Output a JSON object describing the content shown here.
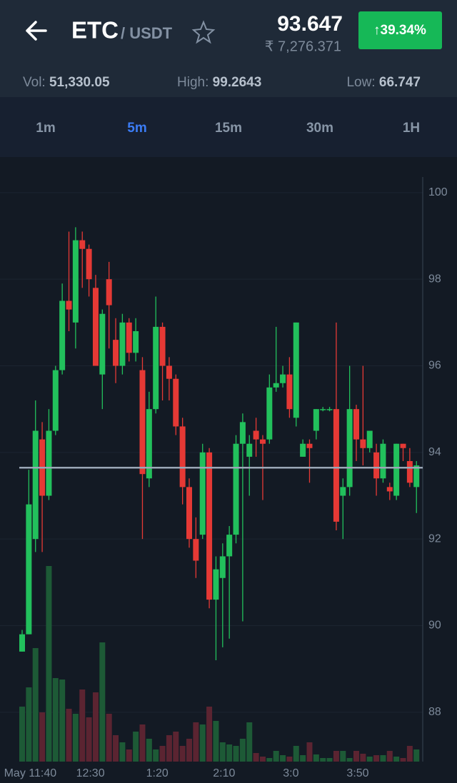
{
  "header": {
    "pair_base": "ETC",
    "pair_quote": "/ USDT",
    "price": "93.647",
    "price_inr": "₹ 7,276.371",
    "change": "↑39.34%"
  },
  "stats": {
    "vol_label": "Vol:",
    "vol": "51,330.05",
    "high_label": "High:",
    "high": "99.2643",
    "low_label": "Low:",
    "low": "66.747"
  },
  "tabs": [
    {
      "label": "1m"
    },
    {
      "label": "5m",
      "active": true
    },
    {
      "label": "15m"
    },
    {
      "label": "30m"
    },
    {
      "label": "1H"
    }
  ],
  "chart_data": {
    "type": "candlestick",
    "categories": [
      null,
      "May 11:40",
      null,
      null,
      null,
      null,
      null,
      null,
      null,
      null,
      "12:30",
      null,
      null,
      null,
      null,
      null,
      null,
      null,
      null,
      null,
      "1:20",
      null,
      null,
      null,
      null,
      null,
      null,
      null,
      null,
      null,
      "2:10",
      null,
      null,
      null,
      null,
      null,
      null,
      null,
      null,
      null,
      "3:0",
      null,
      null,
      null,
      null,
      null,
      null,
      null,
      null,
      null,
      "3:50",
      null,
      null,
      null,
      null,
      null,
      null,
      null,
      null,
      null
    ],
    "open": [
      89.4,
      89.8,
      92.0,
      94.3,
      93.0,
      94.5,
      95.9,
      97.5,
      97.0,
      98.9,
      98.7,
      97.8,
      95.8,
      98.0,
      96.6,
      96.0,
      97.0,
      96.3,
      95.9,
      93.4,
      95.0,
      96.9,
      96.0,
      95.7,
      94.6,
      93.2,
      92.0,
      92.1,
      94.0,
      90.6,
      91.1,
      91.6,
      92.1,
      94.2,
      93.9,
      94.5,
      94.3,
      94.3,
      95.5,
      95.6,
      95.8,
      94.8,
      93.9,
      94.2,
      94.5,
      95.0,
      95.0,
      95.0,
      93.0,
      93.2,
      95.0,
      94.3,
      94.1,
      94.0,
      93.4,
      93.2,
      93.0,
      94.2,
      93.8,
      93.2
    ],
    "high": [
      89.9,
      93.6,
      95.2,
      94.7,
      95.0,
      96.0,
      97.9,
      99.1,
      99.2,
      99.1,
      98.8,
      98.1,
      97.3,
      98.4,
      97.1,
      97.2,
      97.1,
      97.1,
      96.2,
      95.4,
      97.6,
      97.0,
      96.2,
      95.8,
      94.8,
      93.4,
      92.5,
      94.2,
      94.1,
      91.6,
      91.9,
      92.3,
      94.4,
      94.9,
      94.4,
      94.8,
      94.4,
      95.8,
      96.9,
      96.0,
      96.2,
      97.0,
      94.3,
      94.3,
      95.0,
      95.05,
      95.05,
      97.0,
      93.4,
      96.0,
      95.1,
      96.0,
      94.5,
      94.2,
      94.3,
      93.3,
      94.2,
      94.2,
      94.1,
      93.8
    ],
    "low": [
      89.4,
      89.8,
      91.7,
      91.7,
      92.9,
      94.4,
      95.8,
      96.8,
      96.4,
      97.8,
      97.6,
      96.0,
      95.0,
      96.4,
      95.6,
      95.8,
      96.1,
      96.1,
      92.0,
      93.2,
      94.9,
      95.2,
      95.2,
      94.4,
      92.8,
      91.8,
      91.1,
      92.0,
      90.4,
      89.2,
      89.5,
      89.7,
      91.9,
      90.1,
      93.0,
      93.9,
      92.9,
      94.2,
      95.4,
      95.5,
      94.8,
      94.6,
      93.9,
      93.3,
      94.3,
      94.95,
      94.95,
      92.2,
      92.0,
      93.0,
      93.8,
      93.7,
      94.0,
      93.0,
      93.3,
      92.9,
      92.9,
      93.8,
      93.2,
      92.6
    ],
    "close": [
      89.8,
      92.8,
      94.5,
      93.0,
      94.5,
      95.9,
      97.5,
      97.3,
      98.9,
      98.7,
      98.0,
      96.0,
      97.2,
      97.4,
      96.0,
      97.0,
      96.3,
      96.8,
      93.5,
      95.0,
      96.9,
      96.0,
      95.7,
      94.6,
      93.2,
      92.0,
      91.5,
      94.0,
      90.6,
      91.3,
      91.6,
      92.1,
      94.2,
      94.7,
      94.2,
      94.3,
      94.2,
      95.5,
      95.6,
      95.8,
      95.0,
      97.0,
      94.2,
      94.1,
      95.0,
      95.0,
      95.0,
      92.4,
      93.2,
      95.0,
      94.3,
      94.1,
      94.5,
      93.4,
      94.2,
      93.1,
      94.2,
      94.1,
      93.3,
      93.7
    ],
    "volumes": [
      77,
      104,
      159,
      69,
      274,
      117,
      115,
      74,
      67,
      101,
      62,
      97,
      167,
      67,
      37,
      27,
      17,
      42,
      52,
      32,
      17,
      22,
      37,
      42,
      22,
      32,
      55,
      52,
      77,
      57,
      27,
      24,
      22,
      32,
      55,
      12,
      7,
      5,
      15,
      9,
      7,
      22,
      9,
      27,
      10,
      5,
      5,
      15,
      15,
      5,
      15,
      11,
      7,
      9,
      9,
      15,
      7,
      5,
      22,
      17
    ],
    "up_color": "#22c05c",
    "down_color": "#e53935",
    "volume_up_color": "#1d5a36",
    "volume_down_color": "#5b2431",
    "ylim": [
      86.86,
      100.36
    ],
    "yticks": [
      88,
      90,
      92,
      94,
      96,
      98,
      100
    ],
    "grid": true
  }
}
